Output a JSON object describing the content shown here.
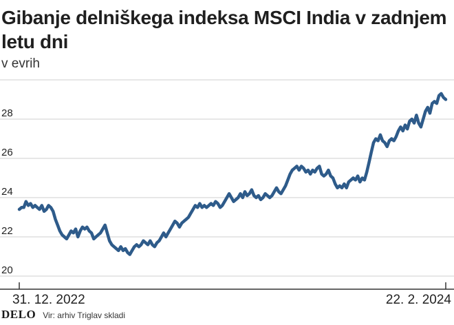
{
  "header": {
    "title": "Gibanje delniškega indeksa MSCI India v zadnjem letu dni",
    "subtitle": "v evrih"
  },
  "footer": {
    "logo_text": "DELO",
    "source": "Vir: arhiv Triglav skladi"
  },
  "colors": {
    "line": "#2e5b8a",
    "grid": "#cfcfcf",
    "axis": "#333333"
  },
  "chart_data": {
    "type": "line",
    "title": "Gibanje delniškega indeksa MSCI India v zadnjem letu dni",
    "ylabel": "v evrih",
    "xlabel": "",
    "ylim": [
      20,
      30
    ],
    "yticks": [
      20,
      22,
      24,
      26,
      28
    ],
    "x_tick_labels": [
      "31. 12. 2022",
      "22. 2. 2024"
    ],
    "grid": true,
    "series": [
      {
        "values": [
          23.4,
          23.5,
          23.5,
          23.8,
          23.6,
          23.7,
          23.5,
          23.6,
          23.5,
          23.4,
          23.6,
          23.3,
          23.4,
          23.6,
          23.5,
          23.3,
          22.9,
          22.6,
          22.3,
          22.1,
          22.0,
          21.9,
          22.1,
          22.3,
          22.2,
          22.4,
          22.0,
          22.3,
          22.5,
          22.4,
          22.5,
          22.3,
          22.2,
          21.9,
          22.0,
          22.1,
          22.2,
          22.4,
          22.6,
          22.2,
          21.8,
          21.6,
          21.5,
          21.4,
          21.3,
          21.5,
          21.3,
          21.4,
          21.2,
          21.1,
          21.3,
          21.5,
          21.6,
          21.5,
          21.6,
          21.8,
          21.7,
          21.6,
          21.8,
          21.6,
          21.5,
          21.7,
          21.8,
          22.0,
          22.2,
          22.0,
          22.2,
          22.4,
          22.6,
          22.8,
          22.7,
          22.5,
          22.7,
          22.8,
          22.9,
          23.0,
          23.2,
          23.4,
          23.6,
          23.5,
          23.7,
          23.5,
          23.6,
          23.5,
          23.6,
          23.7,
          23.6,
          23.8,
          23.7,
          23.5,
          23.6,
          23.8,
          24.0,
          24.2,
          24.0,
          23.8,
          23.9,
          24.0,
          24.2,
          24.0,
          24.3,
          24.1,
          24.2,
          24.4,
          24.1,
          24.0,
          24.1,
          23.9,
          24.0,
          24.2,
          24.1,
          24.0,
          24.1,
          24.3,
          24.5,
          24.3,
          24.2,
          24.4,
          24.6,
          24.9,
          25.2,
          25.4,
          25.5,
          25.6,
          25.4,
          25.6,
          25.5,
          25.3,
          25.4,
          25.2,
          25.4,
          25.3,
          25.5,
          25.6,
          25.2,
          25.1,
          25.2,
          25.4,
          25.1,
          25.0,
          24.7,
          24.5,
          24.6,
          24.5,
          24.7,
          24.5,
          24.8,
          24.9,
          25.0,
          24.9,
          25.1,
          24.8,
          25.0,
          24.9,
          25.3,
          25.8,
          26.3,
          26.8,
          27.0,
          26.9,
          27.2,
          26.9,
          26.8,
          26.6,
          26.9,
          27.0,
          26.9,
          27.1,
          27.4,
          27.6,
          27.4,
          27.7,
          27.5,
          27.9,
          28.0,
          27.8,
          28.2,
          27.8,
          27.6,
          28.0,
          28.4,
          28.6,
          28.3,
          28.8,
          28.9,
          28.8,
          29.2,
          29.3,
          29.1,
          29.0
        ],
        "x_start": "31. 12. 2022",
        "x_end": "22. 2. 2024"
      }
    ]
  }
}
